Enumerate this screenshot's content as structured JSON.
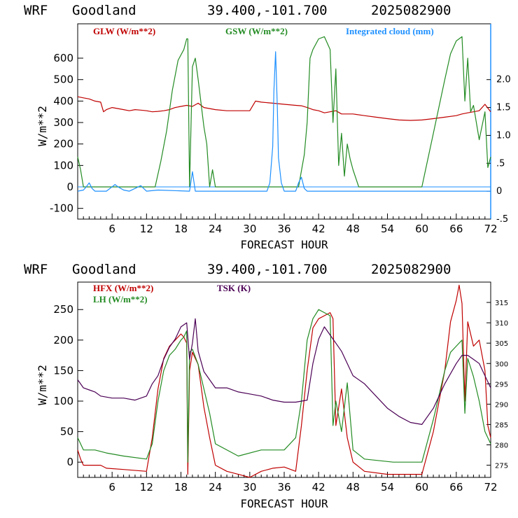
{
  "panels": [
    {
      "header": {
        "model": "WRF",
        "site": "Goodland",
        "coords": "39.400,-101.700",
        "date": "2025082900"
      },
      "ylabel": "W/m**2",
      "xlabel": "FORECAST HOUR",
      "legend": [
        {
          "label": "GLW (W/m**2)",
          "color": "#c00000"
        },
        {
          "label": "GSW (W/m**2)",
          "color": "#238b23"
        },
        {
          "label": "Integrated cloud (mm)",
          "color": "#1e90ff"
        }
      ]
    },
    {
      "header": {
        "model": "WRF",
        "site": "Goodland",
        "coords": "39.400,-101.700",
        "date": "2025082900"
      },
      "ylabel": "W/m**2",
      "xlabel": "FORECAST HOUR",
      "legend": [
        {
          "label": "HFX (W/m**2)",
          "color": "#c00000"
        },
        {
          "label": "LH  (W/m**2)",
          "color": "#238b23"
        },
        {
          "label": "TSK (K)",
          "color": "#4b0055"
        }
      ]
    }
  ],
  "chart_data": [
    {
      "type": "line",
      "xlim": [
        0,
        72
      ],
      "ylim": [
        -150,
        760
      ],
      "y2lim": [
        -0.5,
        3.0
      ],
      "x_ticks": [
        "6",
        "12",
        "18",
        "24",
        "30",
        "36",
        "42",
        "48",
        "54",
        "60",
        "66",
        "72"
      ],
      "y_ticks": [
        "-100",
        "0",
        "100",
        "200",
        "300",
        "400",
        "500",
        "600"
      ],
      "y2_ticks": [
        "-.5",
        "0",
        ".5",
        "1.0",
        "1.5",
        "2.0"
      ],
      "grid": false,
      "series": [
        {
          "name": "GLW (W/m**2)",
          "axis": "left",
          "color": "#c00000",
          "x": [
            0,
            1,
            2,
            3,
            4,
            4.5,
            5,
            6,
            7,
            8,
            9,
            10,
            11,
            12,
            13,
            14,
            15,
            16,
            17,
            18,
            19,
            20,
            21,
            22,
            23,
            24,
            26,
            28,
            30,
            31,
            32,
            34,
            36,
            38,
            39,
            40,
            41,
            42,
            43,
            44,
            45,
            46,
            48,
            50,
            52,
            54,
            56,
            58,
            60,
            62,
            64,
            66,
            67,
            68,
            69,
            70,
            71,
            72
          ],
          "y": [
            420,
            415,
            410,
            400,
            395,
            350,
            360,
            370,
            365,
            360,
            355,
            360,
            358,
            355,
            350,
            352,
            355,
            360,
            370,
            375,
            380,
            375,
            390,
            370,
            365,
            360,
            355,
            355,
            355,
            400,
            395,
            390,
            385,
            380,
            378,
            370,
            360,
            355,
            345,
            350,
            355,
            340,
            340,
            332,
            325,
            318,
            312,
            310,
            312,
            318,
            325,
            332,
            340,
            345,
            350,
            355,
            385,
            350
          ]
        },
        {
          "name": "GSW (W/m**2)",
          "axis": "left",
          "color": "#238b23",
          "x": [
            0,
            0.5,
            1,
            13.5,
            14.5,
            15.5,
            16.5,
            17.5,
            18.5,
            19,
            19.2,
            19.5,
            20,
            20.5,
            21,
            22,
            22.5,
            23,
            23.5,
            24,
            38.5,
            39.5,
            40,
            40.5,
            41,
            42,
            43,
            44,
            44.5,
            45,
            45.5,
            46,
            46.5,
            47,
            47.5,
            48,
            49,
            60,
            62,
            64,
            65,
            66,
            67,
            67.5,
            68,
            68.5,
            69,
            70,
            71,
            71.5,
            72
          ],
          "y": [
            140,
            80,
            0,
            0,
            120,
            260,
            450,
            590,
            640,
            690,
            690,
            0,
            560,
            600,
            500,
            280,
            200,
            0,
            80,
            0,
            0,
            150,
            300,
            600,
            640,
            690,
            700,
            640,
            300,
            550,
            100,
            250,
            50,
            200,
            130,
            80,
            0,
            0,
            250,
            500,
            620,
            680,
            700,
            400,
            600,
            350,
            380,
            220,
            350,
            90,
            140
          ]
        },
        {
          "name": "Integrated cloud (mm)",
          "axis": "right",
          "color": "#1e90ff",
          "x": [
            0,
            1,
            1.5,
            2,
            2.5,
            3,
            5,
            6,
            6.5,
            7,
            8,
            9,
            10,
            11,
            11.5,
            12,
            14,
            19.5,
            20,
            20.5,
            33,
            33.5,
            34,
            34.2,
            34.5,
            34.8,
            35,
            35.5,
            36,
            38,
            38.5,
            39,
            39.5,
            40,
            72
          ],
          "y": [
            0,
            0.02,
            0.08,
            0.15,
            0.05,
            0,
            0,
            0.08,
            0.12,
            0.08,
            0.02,
            0,
            0.05,
            0.1,
            0.05,
            0,
            0.02,
            0,
            0.35,
            0,
            0,
            0.15,
            0.8,
            1.8,
            2.5,
            1.5,
            0.6,
            0.15,
            0,
            0,
            0.15,
            0.25,
            0.05,
            0,
            0
          ]
        }
      ]
    },
    {
      "type": "line",
      "xlim": [
        0,
        72
      ],
      "ylim": [
        -25,
        295
      ],
      "y2lim": [
        272,
        320
      ],
      "x_ticks": [
        "6",
        "12",
        "18",
        "24",
        "30",
        "36",
        "42",
        "48",
        "54",
        "60",
        "66",
        "72"
      ],
      "y_ticks": [
        "0",
        "50",
        "100",
        "150",
        "200",
        "250"
      ],
      "y2_ticks": [
        "275",
        "280",
        "285",
        "290",
        "295",
        "300",
        "305",
        "310",
        "315"
      ],
      "grid": false,
      "series": [
        {
          "name": "HFX (W/m**2)",
          "axis": "left",
          "color": "#c00000",
          "x": [
            0,
            0.5,
            1,
            4,
            5,
            8,
            12,
            13,
            14,
            15,
            16,
            17,
            18,
            18.5,
            19,
            19.2,
            19.5,
            20,
            21,
            22,
            23,
            24,
            26,
            28,
            30,
            32,
            34,
            36,
            38,
            39,
            40,
            41,
            42,
            43,
            44,
            44.5,
            45,
            46,
            47,
            48,
            50,
            54,
            58,
            60,
            62,
            64,
            65,
            66,
            66.5,
            67,
            67.5,
            68,
            69,
            70,
            71,
            71.5,
            72
          ],
          "y": [
            20,
            5,
            -5,
            -5,
            -10,
            -12,
            -15,
            40,
            120,
            170,
            190,
            200,
            210,
            205,
            195,
            -20,
            150,
            180,
            160,
            90,
            40,
            -5,
            -15,
            -20,
            -25,
            -15,
            -10,
            -8,
            -15,
            60,
            150,
            220,
            235,
            240,
            245,
            235,
            60,
            120,
            40,
            0,
            -15,
            -20,
            -20,
            -20,
            50,
            150,
            230,
            265,
            290,
            260,
            100,
            230,
            190,
            200,
            150,
            60,
            40
          ]
        },
        {
          "name": "LH  (W/m**2)",
          "axis": "left",
          "color": "#238b23",
          "x": [
            0,
            1,
            3,
            5,
            8,
            12,
            13,
            14,
            15,
            16,
            17,
            18,
            18.5,
            19,
            19.2,
            19.5,
            20,
            21,
            22,
            23,
            24,
            28,
            32,
            36,
            38,
            39,
            40,
            41,
            42,
            43,
            44,
            44.5,
            45,
            46,
            47,
            48,
            50,
            55,
            60,
            62,
            64,
            65,
            66,
            67,
            67.5,
            68,
            69,
            70,
            71,
            72
          ],
          "y": [
            40,
            20,
            20,
            15,
            10,
            5,
            30,
            100,
            150,
            175,
            185,
            200,
            205,
            215,
            0,
            180,
            185,
            160,
            120,
            80,
            30,
            10,
            20,
            20,
            40,
            100,
            200,
            235,
            250,
            245,
            240,
            60,
            100,
            50,
            130,
            20,
            5,
            0,
            0,
            70,
            150,
            180,
            190,
            200,
            80,
            170,
            140,
            100,
            50,
            30
          ]
        },
        {
          "name": "TSK (K)",
          "axis": "right",
          "color": "#4b0055",
          "x": [
            0,
            1,
            2,
            3,
            4,
            6,
            8,
            10,
            12,
            13,
            14,
            15,
            16,
            17,
            18,
            19,
            19.5,
            20,
            20.5,
            21,
            22,
            23,
            24,
            26,
            28,
            30,
            32,
            34,
            36,
            38,
            40,
            41,
            42,
            43,
            44,
            45,
            46,
            47,
            48,
            50,
            52,
            54,
            56,
            58,
            60,
            62,
            64,
            66,
            67,
            68,
            69,
            70,
            71,
            72
          ],
          "y": [
            296,
            294,
            293.5,
            293,
            292,
            291.5,
            291.5,
            291,
            292,
            295,
            297,
            301,
            304,
            306,
            309,
            310,
            301,
            305,
            311,
            303,
            298,
            296,
            294,
            294,
            293,
            292.5,
            292,
            291,
            290.5,
            290.5,
            291,
            300,
            306,
            309,
            307,
            305,
            303,
            300,
            297,
            295,
            292,
            289,
            287,
            285.5,
            285,
            289,
            295,
            300,
            302,
            302,
            301,
            300,
            297,
            294
          ]
        }
      ]
    }
  ]
}
